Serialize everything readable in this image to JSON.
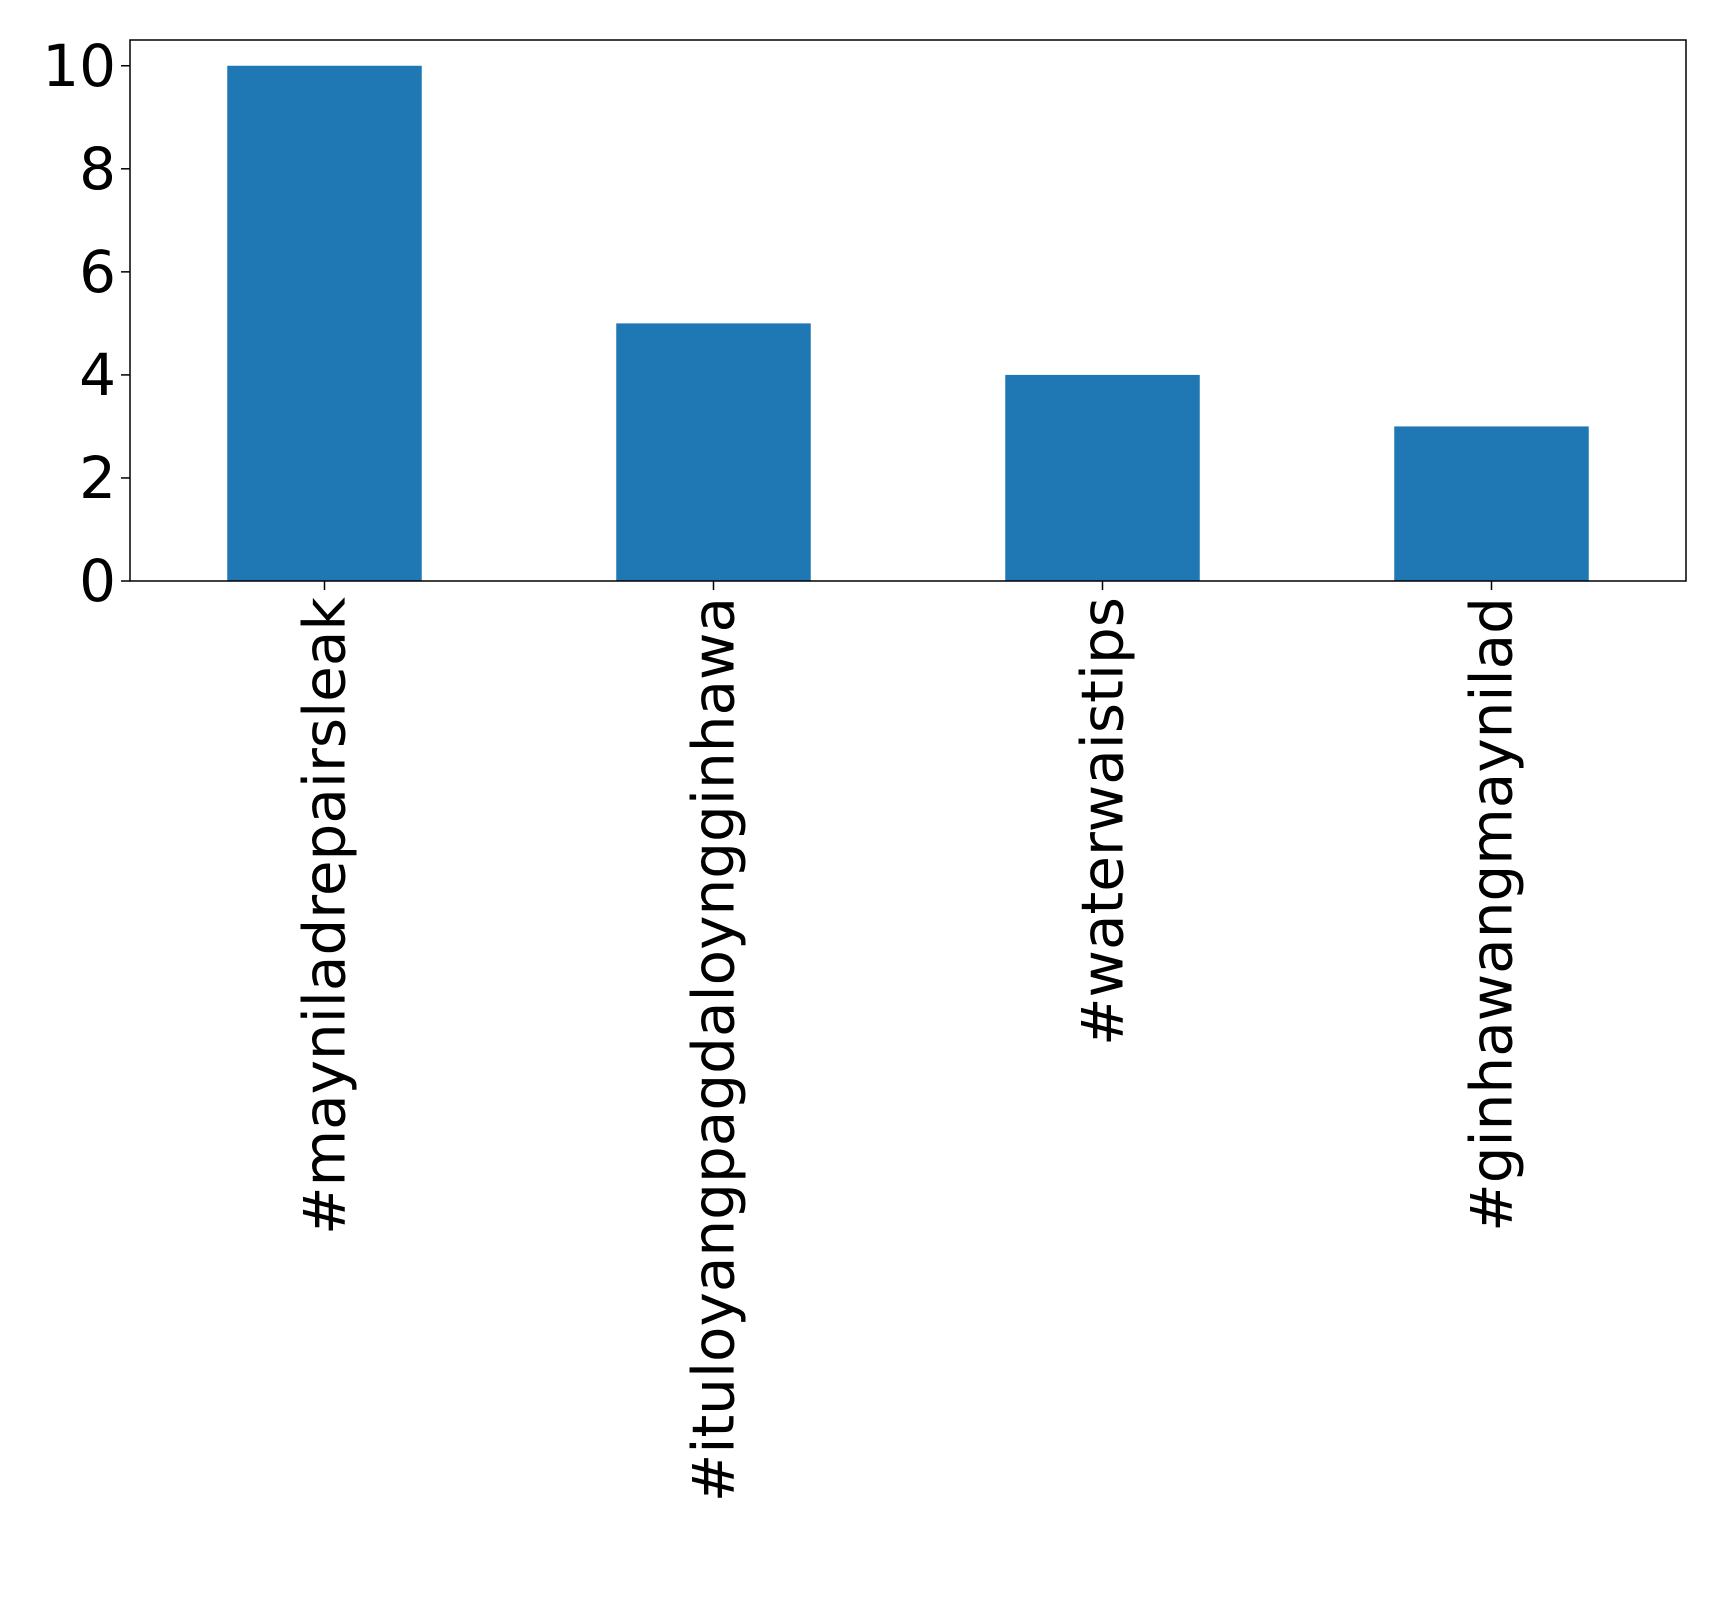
{
  "chart_data": {
    "type": "bar",
    "title": "",
    "xlabel": "",
    "ylabel": "",
    "categories": [
      "#mayniladrepairsleak",
      "#ituloyangpagdaloyngginhawa",
      "#waterwaistips",
      "#ginhawangmaynilad"
    ],
    "values": [
      10,
      5,
      4,
      3
    ],
    "ylim": [
      0,
      10.5
    ],
    "yticks": [
      0,
      2,
      4,
      6,
      8,
      10
    ],
    "ytick_labels": [
      "0",
      "2",
      "4",
      "6",
      "8",
      "10"
    ],
    "bar_color": "#1f77b4",
    "grid": false,
    "legend": "none",
    "xtick_rotation": "vertical"
  }
}
